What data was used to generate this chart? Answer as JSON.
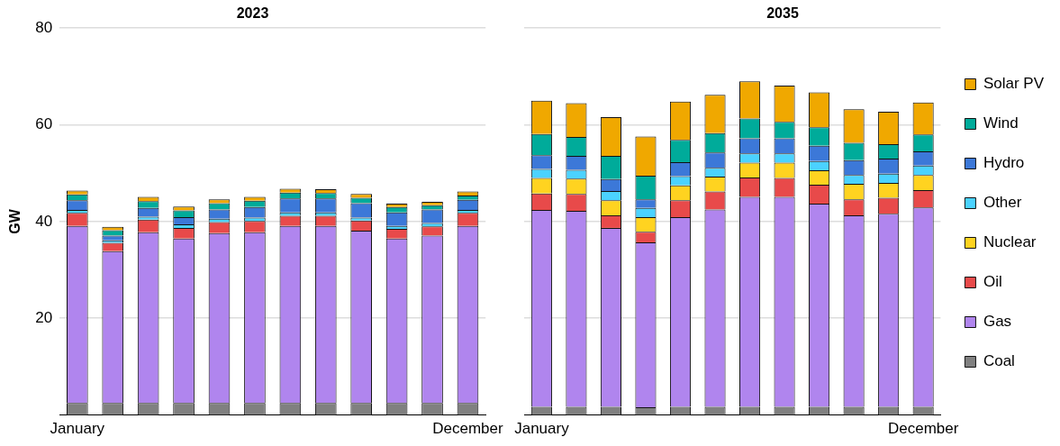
{
  "chart_data": [
    {
      "type": "bar",
      "title": "2023",
      "ylabel": "GW",
      "stacked": true,
      "grid": "y",
      "ylim": [
        0,
        80
      ],
      "yticks": [
        20,
        40,
        60,
        80
      ],
      "categories": [
        "January",
        null,
        null,
        null,
        null,
        null,
        null,
        null,
        null,
        null,
        null,
        "December"
      ],
      "series": [
        {
          "color": "#808080",
          "values": [
            2.5,
            2.5,
            2.5,
            2.5,
            2.5,
            2.5,
            2.5,
            2.5,
            2.5,
            2.5,
            2.5,
            2.5
          ]
        },
        {
          "color": "#b085ee",
          "values": [
            36.6,
            31.4,
            35.3,
            34.0,
            35.1,
            35.3,
            36.6,
            36.6,
            35.6,
            34.0,
            34.6,
            36.6
          ]
        },
        {
          "color": "#e84a4a",
          "values": [
            2.7,
            1.7,
            2.6,
            2.2,
            2.3,
            2.3,
            2.1,
            2.1,
            2.1,
            2.0,
            1.9,
            2.7
          ]
        },
        {
          "color": "#ffd320",
          "values": [
            0,
            0,
            0,
            0,
            0,
            0,
            0,
            0,
            0,
            0,
            0,
            0
          ]
        },
        {
          "color": "#4bd2ff",
          "values": [
            0.6,
            0.5,
            0.6,
            0.7,
            0.7,
            0.7,
            0.7,
            0.7,
            0.6,
            0.6,
            0.7,
            0.6
          ]
        },
        {
          "color": "#3c78d8",
          "values": [
            2.0,
            1.0,
            1.8,
            1.5,
            1.9,
            2.2,
            2.9,
            2.9,
            3.0,
            2.8,
            2.8,
            2.1
          ]
        },
        {
          "color": "#00ab9a",
          "values": [
            1.2,
            1.1,
            1.4,
            1.4,
            1.3,
            1.3,
            1.2,
            1.1,
            1.1,
            1.1,
            0.9,
            0.9
          ]
        },
        {
          "color": "#f0a800",
          "values": [
            0.8,
            0.7,
            0.9,
            0.8,
            0.8,
            0.8,
            0.8,
            0.8,
            0.8,
            0.7,
            0.7,
            0.8
          ]
        }
      ]
    },
    {
      "type": "bar",
      "title": "2035",
      "stacked": true,
      "grid": "y",
      "ylim": [
        0,
        80
      ],
      "yticks": [
        20,
        40,
        60,
        80
      ],
      "tick_labels": "x",
      "legend": "right",
      "categories": [
        "January",
        null,
        null,
        null,
        null,
        null,
        null,
        null,
        null,
        null,
        null,
        "December"
      ],
      "series": [
        {
          "name": "Coal",
          "color": "#808080",
          "values": [
            1.7,
            1.7,
            1.7,
            1.6,
            1.7,
            1.7,
            1.7,
            1.7,
            1.7,
            1.7,
            1.7,
            1.7
          ]
        },
        {
          "name": "Gas",
          "color": "#b085ee",
          "values": [
            40.7,
            40.5,
            37.0,
            34.1,
            39.2,
            40.8,
            43.4,
            43.4,
            42.0,
            39.6,
            39.9,
            41.2
          ]
        },
        {
          "name": "Oil",
          "color": "#e84a4a",
          "values": [
            3.4,
            3.5,
            2.6,
            2.2,
            3.5,
            3.7,
            4.0,
            3.9,
            3.9,
            3.3,
            3.3,
            3.6
          ]
        },
        {
          "name": "Nuclear",
          "color": "#ffd320",
          "values": [
            3.2,
            3.2,
            3.1,
            3.0,
            3.1,
            3.1,
            3.1,
            3.2,
            3.0,
            3.2,
            3.1,
            3.1
          ]
        },
        {
          "name": "Other",
          "color": "#4bd2ff",
          "values": [
            1.9,
            1.8,
            1.9,
            1.9,
            1.9,
            1.8,
            1.9,
            1.9,
            1.9,
            1.8,
            1.9,
            2.0
          ]
        },
        {
          "name": "Hydro",
          "color": "#3c78d8",
          "values": [
            2.8,
            2.9,
            2.5,
            1.8,
            2.9,
            3.2,
            3.1,
            3.1,
            3.2,
            3.1,
            3.1,
            2.9
          ]
        },
        {
          "name": "Wind",
          "color": "#00ab9a",
          "values": [
            4.4,
            3.9,
            4.8,
            4.9,
            4.6,
            4.0,
            4.1,
            3.4,
            3.8,
            3.6,
            3.0,
            3.5
          ]
        },
        {
          "name": "Solar PV",
          "color": "#f0a800",
          "values": [
            6.9,
            7.0,
            8.0,
            8.1,
            7.9,
            7.9,
            7.7,
            7.5,
            7.2,
            6.9,
            6.7,
            6.6
          ]
        }
      ]
    }
  ]
}
